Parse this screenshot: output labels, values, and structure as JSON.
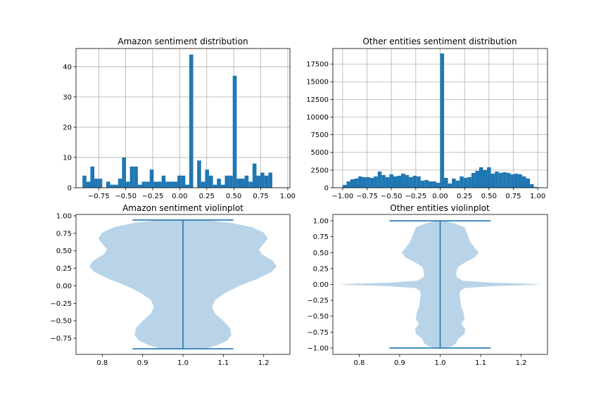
{
  "colors": {
    "bar": "#1f77b4",
    "violin_body": "#b9d4e8",
    "violin_line": "#1f77b4"
  },
  "chart_data": [
    {
      "id": "amazon_hist",
      "type": "bar",
      "title": "Amazon sentiment distribution",
      "xlim": [
        -0.96,
        1.02
      ],
      "ylim": [
        0,
        46
      ],
      "xticks": [
        -0.75,
        -0.5,
        -0.25,
        0.0,
        0.25,
        0.5,
        0.75,
        1.0
      ],
      "xtick_labels": [
        "−0.75",
        "−0.50",
        "−0.25",
        "0.00",
        "0.25",
        "0.50",
        "0.75",
        "1.00"
      ],
      "yticks": [
        0,
        10,
        20,
        30,
        40
      ],
      "ytick_labels": [
        "0",
        "10",
        "20",
        "30",
        "40"
      ],
      "grid": true,
      "bin_start": -0.9,
      "bin_width": 0.0366,
      "values": [
        4,
        2,
        7,
        3,
        3,
        0,
        2,
        1,
        1,
        3,
        10,
        2,
        7,
        7,
        1,
        2,
        2,
        6,
        2,
        2,
        4,
        2,
        2,
        2,
        4,
        4,
        1,
        44,
        0,
        9,
        2,
        6,
        4,
        1,
        3,
        1,
        4,
        4,
        37,
        3,
        3,
        4,
        2,
        8,
        4,
        5,
        4,
        5
      ]
    },
    {
      "id": "other_hist",
      "type": "bar",
      "title": "Other entities sentiment distribution",
      "xlim": [
        -1.1,
        1.1
      ],
      "ylim": [
        0,
        19700
      ],
      "xticks": [
        -1.0,
        -0.75,
        -0.5,
        -0.25,
        0.0,
        0.25,
        0.5,
        0.75,
        1.0
      ],
      "xtick_labels": [
        "−1.00",
        "−0.75",
        "−0.50",
        "−0.25",
        "0.00",
        "0.25",
        "0.50",
        "0.75",
        "1.00"
      ],
      "yticks": [
        0,
        2500,
        5000,
        7500,
        10000,
        12500,
        15000,
        17500
      ],
      "ytick_labels": [
        "0",
        "2500",
        "5000",
        "7500",
        "10000",
        "12500",
        "15000",
        "17500"
      ],
      "grid": true,
      "bin_start": -1.0,
      "bin_width": 0.04,
      "values": [
        400,
        900,
        1200,
        1300,
        1600,
        1500,
        1500,
        1400,
        1600,
        2300,
        1800,
        1500,
        1900,
        1600,
        1700,
        2000,
        1800,
        1500,
        1700,
        1600,
        1000,
        1100,
        900,
        900,
        700,
        19000,
        1400,
        600,
        1300,
        1000,
        1600,
        1400,
        1500,
        2100,
        2400,
        2900,
        2500,
        2900,
        2000,
        2300,
        2100,
        2200,
        2100,
        1900,
        2000,
        1900,
        1600,
        1300,
        500,
        100
      ]
    },
    {
      "id": "amazon_violin",
      "type": "violin",
      "title": "Amazon sentiment violinplot",
      "xlim": [
        0.735,
        1.265
      ],
      "ylim": [
        -0.98,
        1.02
      ],
      "xticks": [
        0.8,
        0.9,
        1.0,
        1.1,
        1.2
      ],
      "xtick_labels": [
        "0.8",
        "0.9",
        "1.0",
        "1.1",
        "1.2"
      ],
      "yticks": [
        -0.75,
        -0.5,
        -0.25,
        0.0,
        0.25,
        0.5,
        0.75,
        1.0
      ],
      "ytick_labels": [
        "−0.75",
        "−0.50",
        "−0.25",
        "0.00",
        "0.25",
        "0.50",
        "0.75",
        "1.00"
      ],
      "grid": false,
      "center": 1.0,
      "cap_halfwidth": 0.125,
      "min": -0.9,
      "max": 0.94,
      "profile": [
        [
          -0.9,
          0.055
        ],
        [
          -0.85,
          0.085
        ],
        [
          -0.78,
          0.11
        ],
        [
          -0.7,
          0.12
        ],
        [
          -0.6,
          0.116
        ],
        [
          -0.5,
          0.1
        ],
        [
          -0.4,
          0.08
        ],
        [
          -0.3,
          0.072
        ],
        [
          -0.2,
          0.08
        ],
        [
          -0.1,
          0.105
        ],
        [
          0.0,
          0.14
        ],
        [
          0.1,
          0.185
        ],
        [
          0.2,
          0.22
        ],
        [
          0.28,
          0.232
        ],
        [
          0.36,
          0.222
        ],
        [
          0.45,
          0.196
        ],
        [
          0.52,
          0.188
        ],
        [
          0.6,
          0.2
        ],
        [
          0.68,
          0.21
        ],
        [
          0.76,
          0.2
        ],
        [
          0.84,
          0.17
        ],
        [
          0.9,
          0.12
        ],
        [
          0.94,
          0.06
        ]
      ]
    },
    {
      "id": "other_violin",
      "type": "violin",
      "title": "Other entities violinplot",
      "xlim": [
        0.735,
        1.265
      ],
      "ylim": [
        -1.1,
        1.1
      ],
      "xticks": [
        0.8,
        0.9,
        1.0,
        1.1,
        1.2
      ],
      "xtick_labels": [
        "0.8",
        "0.9",
        "1.0",
        "1.1",
        "1.2"
      ],
      "yticks": [
        -1.0,
        -0.75,
        -0.5,
        -0.25,
        0.0,
        0.25,
        0.5,
        0.75,
        1.0
      ],
      "ytick_labels": [
        "−1.00",
        "−0.75",
        "−0.50",
        "−0.25",
        "0.00",
        "0.25",
        "0.50",
        "0.75",
        "1.00"
      ],
      "grid": false,
      "center": 1.0,
      "cap_halfwidth": 0.125,
      "min": -1.0,
      "max": 1.0,
      "profile": [
        [
          -1.0,
          0.01
        ],
        [
          -0.97,
          0.03
        ],
        [
          -0.92,
          0.04
        ],
        [
          -0.85,
          0.045
        ],
        [
          -0.78,
          0.06
        ],
        [
          -0.7,
          0.062
        ],
        [
          -0.62,
          0.052
        ],
        [
          -0.55,
          0.06
        ],
        [
          -0.45,
          0.058
        ],
        [
          -0.35,
          0.052
        ],
        [
          -0.25,
          0.05
        ],
        [
          -0.15,
          0.048
        ],
        [
          -0.1,
          0.05
        ],
        [
          -0.06,
          0.06
        ],
        [
          -0.03,
          0.12
        ],
        [
          -0.01,
          0.22
        ],
        [
          0.0,
          0.25
        ],
        [
          0.01,
          0.22
        ],
        [
          0.03,
          0.12
        ],
        [
          0.06,
          0.055
        ],
        [
          0.12,
          0.04
        ],
        [
          0.2,
          0.04
        ],
        [
          0.28,
          0.045
        ],
        [
          0.36,
          0.065
        ],
        [
          0.42,
          0.085
        ],
        [
          0.5,
          0.095
        ],
        [
          0.58,
          0.085
        ],
        [
          0.66,
          0.075
        ],
        [
          0.74,
          0.07
        ],
        [
          0.82,
          0.065
        ],
        [
          0.9,
          0.06
        ],
        [
          0.96,
          0.035
        ],
        [
          1.0,
          0.01
        ]
      ]
    }
  ]
}
